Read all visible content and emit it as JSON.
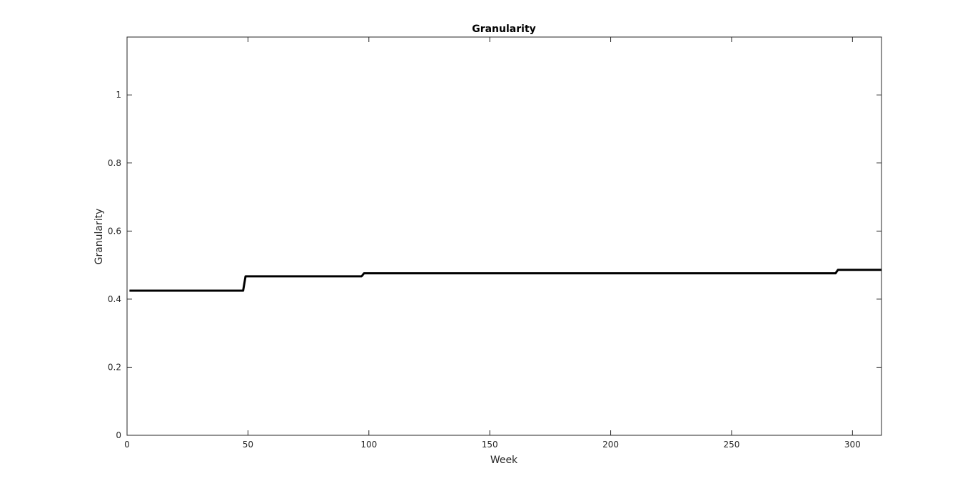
{
  "chart_data": {
    "type": "line",
    "title": "Granularity",
    "xlabel": "Week",
    "ylabel": "Granularity",
    "xlim": [
      0,
      312
    ],
    "ylim": [
      0,
      1.17
    ],
    "xticks": [
      0,
      50,
      100,
      150,
      200,
      250,
      300
    ],
    "xtick_labels": [
      "0",
      "50",
      "100",
      "150",
      "200",
      "250",
      "300"
    ],
    "yticks": [
      0,
      0.2,
      0.4,
      0.6,
      0.8,
      1
    ],
    "ytick_labels": [
      "0",
      "0.2",
      "0.4",
      "0.6",
      "0.8",
      "1"
    ],
    "grid": false,
    "series": [
      {
        "color": "#000000",
        "x": [
          1,
          48,
          49,
          97,
          98,
          150,
          200,
          250,
          293,
          294,
          312
        ],
        "y": [
          0.425,
          0.425,
          0.467,
          0.467,
          0.476,
          0.476,
          0.476,
          0.476,
          0.476,
          0.486,
          0.486
        ]
      }
    ]
  }
}
